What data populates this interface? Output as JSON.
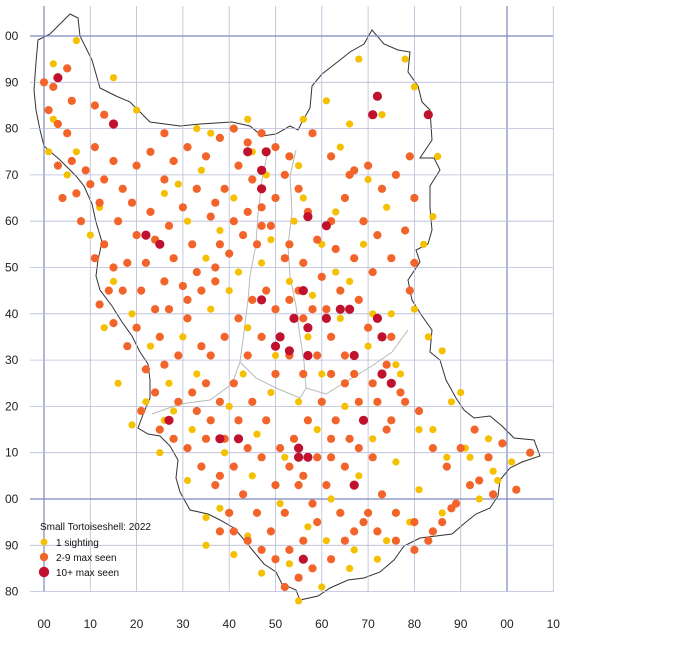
{
  "legend": {
    "title": "Small Tortoiseshell:  2022",
    "items": [
      {
        "label": "1 sighting",
        "color": "#F5C000",
        "symbol": "small-dot"
      },
      {
        "label": "2-9 max seen",
        "color": "#F2642A",
        "symbol": "dot"
      },
      {
        "label": "10+ max seen",
        "color": "#C0122E",
        "symbol": "large-dot"
      }
    ]
  },
  "colors": {
    "grid": "#B8BCD8",
    "grid_major": "#7E86BE",
    "outline": "#333333",
    "inner_boundary": "#B9B9B9"
  },
  "axes": {
    "x_labels": [
      "00",
      "10",
      "20",
      "30",
      "40",
      "50",
      "60",
      "70",
      "80",
      "90",
      "00",
      "10"
    ],
    "y_labels": [
      "00",
      "90",
      "80",
      "70",
      "60",
      "50",
      "40",
      "30",
      "20",
      "10",
      "00",
      "90",
      "80"
    ]
  },
  "records": {
    "one_sighting": [
      [
        2,
        94
      ],
      [
        7,
        99
      ],
      [
        15,
        91
      ],
      [
        20,
        84
      ],
      [
        33,
        80
      ],
      [
        36,
        79
      ],
      [
        44,
        82
      ],
      [
        45,
        75
      ],
      [
        55,
        72
      ],
      [
        56,
        82
      ],
      [
        61,
        86
      ],
      [
        64,
        76
      ],
      [
        66,
        81
      ],
      [
        68,
        95
      ],
      [
        73,
        83
      ],
      [
        78,
        95
      ],
      [
        80,
        89
      ],
      [
        85,
        74
      ],
      [
        84,
        61
      ],
      [
        82,
        55
      ],
      [
        80,
        41
      ],
      [
        75,
        40
      ],
      [
        83,
        35
      ],
      [
        77,
        27
      ],
      [
        88,
        21
      ],
      [
        84,
        15
      ],
      [
        91,
        11
      ],
      [
        96,
        13
      ],
      [
        101,
        8
      ],
      [
        98,
        4
      ],
      [
        94,
        0
      ],
      [
        86,
        -3
      ],
      [
        79,
        -5
      ],
      [
        72,
        -13
      ],
      [
        66,
        -15
      ],
      [
        60,
        -19
      ],
      [
        55,
        -22
      ],
      [
        47,
        -16
      ],
      [
        41,
        -12
      ],
      [
        35,
        -4
      ],
      [
        31,
        4
      ],
      [
        25,
        10
      ],
      [
        19,
        16
      ],
      [
        22,
        21
      ],
      [
        27,
        25
      ],
      [
        23,
        33
      ],
      [
        19,
        40
      ],
      [
        15,
        47
      ],
      [
        10,
        57
      ],
      [
        12,
        63
      ],
      [
        7,
        75
      ],
      [
        2,
        82
      ],
      [
        1,
        75
      ],
      [
        26,
        66
      ],
      [
        38,
        58
      ],
      [
        47,
        51
      ],
      [
        53,
        47
      ],
      [
        58,
        44
      ],
      [
        63,
        49
      ],
      [
        69,
        55
      ],
      [
        74,
        63
      ],
      [
        70,
        69
      ],
      [
        63,
        62
      ],
      [
        56,
        65
      ],
      [
        49,
        56
      ],
      [
        42,
        49
      ],
      [
        36,
        41
      ],
      [
        30,
        35
      ],
      [
        33,
        27
      ],
      [
        40,
        20
      ],
      [
        46,
        14
      ],
      [
        52,
        9
      ],
      [
        59,
        15
      ],
      [
        65,
        20
      ],
      [
        71,
        13
      ],
      [
        76,
        8
      ],
      [
        81,
        15
      ],
      [
        68,
        5
      ],
      [
        62,
        0
      ],
      [
        57,
        -6
      ],
      [
        51,
        -1
      ],
      [
        45,
        5
      ],
      [
        39,
        10
      ],
      [
        32,
        15
      ],
      [
        28,
        19
      ],
      [
        43,
        27
      ],
      [
        50,
        31
      ],
      [
        57,
        35
      ],
      [
        64,
        39
      ],
      [
        70,
        33
      ],
      [
        60,
        27
      ],
      [
        55,
        21
      ],
      [
        49,
        23
      ],
      [
        44,
        37
      ],
      [
        40,
        45
      ],
      [
        35,
        52
      ],
      [
        31,
        60
      ],
      [
        29,
        68
      ],
      [
        34,
        71
      ],
      [
        41,
        65
      ],
      [
        48,
        70
      ],
      [
        54,
        60
      ],
      [
        60,
        55
      ],
      [
        66,
        47
      ],
      [
        71,
        40
      ],
      [
        76,
        29
      ],
      [
        86,
        32
      ],
      [
        90,
        23
      ],
      [
        92,
        9
      ],
      [
        97,
        6
      ],
      [
        87,
        9
      ],
      [
        81,
        2
      ],
      [
        74,
        -9
      ],
      [
        67,
        -11
      ],
      [
        61,
        -9
      ],
      [
        53,
        -14
      ],
      [
        44,
        -8
      ],
      [
        38,
        -2
      ],
      [
        35,
        -10
      ],
      [
        26,
        17
      ],
      [
        16,
        25
      ],
      [
        13,
        37
      ],
      [
        5,
        70
      ]
    ],
    "two_to_nine": [
      [
        0,
        90
      ],
      [
        2,
        89
      ],
      [
        5,
        93
      ],
      [
        6,
        86
      ],
      [
        1,
        84
      ],
      [
        3,
        81
      ],
      [
        5,
        79
      ],
      [
        11,
        85
      ],
      [
        13,
        83
      ],
      [
        6,
        73
      ],
      [
        9,
        71
      ],
      [
        11,
        76
      ],
      [
        13,
        69
      ],
      [
        15,
        73
      ],
      [
        17,
        67
      ],
      [
        19,
        64
      ],
      [
        12,
        64
      ],
      [
        16,
        60
      ],
      [
        13,
        55
      ],
      [
        15,
        50
      ],
      [
        17,
        45
      ],
      [
        12,
        42
      ],
      [
        15,
        38
      ],
      [
        20,
        37
      ],
      [
        24,
        41
      ],
      [
        26,
        47
      ],
      [
        22,
        51
      ],
      [
        24,
        56
      ],
      [
        27,
        59
      ],
      [
        30,
        63
      ],
      [
        32,
        55
      ],
      [
        28,
        52
      ],
      [
        30,
        46
      ],
      [
        34,
        45
      ],
      [
        37,
        50
      ],
      [
        38,
        55
      ],
      [
        41,
        60
      ],
      [
        36,
        61
      ],
      [
        39,
        67
      ],
      [
        42,
        72
      ],
      [
        45,
        69
      ],
      [
        47,
        63
      ],
      [
        50,
        65
      ],
      [
        52,
        70
      ],
      [
        55,
        67
      ],
      [
        57,
        62
      ],
      [
        59,
        56
      ],
      [
        62,
        60
      ],
      [
        65,
        65
      ],
      [
        67,
        71
      ],
      [
        70,
        72
      ],
      [
        73,
        67
      ],
      [
        76,
        70
      ],
      [
        79,
        74
      ],
      [
        80,
        65
      ],
      [
        78,
        58
      ],
      [
        75,
        52
      ],
      [
        80,
        51
      ],
      [
        79,
        45
      ],
      [
        75,
        35
      ],
      [
        70,
        37
      ],
      [
        68,
        43
      ],
      [
        64,
        45
      ],
      [
        61,
        41
      ],
      [
        56,
        39
      ],
      [
        53,
        43
      ],
      [
        50,
        41
      ],
      [
        48,
        45
      ],
      [
        45,
        43
      ],
      [
        42,
        39
      ],
      [
        39,
        35
      ],
      [
        36,
        31
      ],
      [
        34,
        33
      ],
      [
        31,
        39
      ],
      [
        29,
        31
      ],
      [
        26,
        29
      ],
      [
        24,
        23
      ],
      [
        21,
        19
      ],
      [
        25,
        15
      ],
      [
        29,
        21
      ],
      [
        33,
        19
      ],
      [
        36,
        17
      ],
      [
        39,
        13
      ],
      [
        42,
        17
      ],
      [
        45,
        21
      ],
      [
        48,
        17
      ],
      [
        51,
        11
      ],
      [
        54,
        13
      ],
      [
        57,
        17
      ],
      [
        60,
        21
      ],
      [
        63,
        17
      ],
      [
        66,
        13
      ],
      [
        69,
        17
      ],
      [
        72,
        21
      ],
      [
        75,
        17
      ],
      [
        78,
        21
      ],
      [
        81,
        19
      ],
      [
        84,
        11
      ],
      [
        87,
        7
      ],
      [
        90,
        11
      ],
      [
        93,
        15
      ],
      [
        96,
        9
      ],
      [
        99,
        12
      ],
      [
        92,
        3
      ],
      [
        88,
        -2
      ],
      [
        84,
        -7
      ],
      [
        80,
        -5
      ],
      [
        76,
        -3
      ],
      [
        73,
        1
      ],
      [
        70,
        -3
      ],
      [
        67,
        -7
      ],
      [
        64,
        -3
      ],
      [
        61,
        3
      ],
      [
        58,
        -1
      ],
      [
        55,
        3
      ],
      [
        52,
        -3
      ],
      [
        49,
        -7
      ],
      [
        46,
        -3
      ],
      [
        43,
        1
      ],
      [
        40,
        -3
      ],
      [
        37,
        3
      ],
      [
        34,
        7
      ],
      [
        31,
        11
      ],
      [
        28,
        13
      ],
      [
        22,
        28
      ],
      [
        18,
        33
      ],
      [
        14,
        45
      ],
      [
        11,
        52
      ],
      [
        8,
        60
      ],
      [
        4,
        65
      ],
      [
        3,
        72
      ],
      [
        7,
        66
      ],
      [
        10,
        68
      ],
      [
        20,
        72
      ],
      [
        23,
        75
      ],
      [
        26,
        79
      ],
      [
        28,
        73
      ],
      [
        31,
        76
      ],
      [
        35,
        74
      ],
      [
        38,
        78
      ],
      [
        41,
        80
      ],
      [
        44,
        77
      ],
      [
        47,
        79
      ],
      [
        50,
        76
      ],
      [
        53,
        74
      ],
      [
        58,
        79
      ],
      [
        62,
        74
      ],
      [
        66,
        70
      ],
      [
        69,
        60
      ],
      [
        72,
        57
      ],
      [
        71,
        49
      ],
      [
        67,
        52
      ],
      [
        63,
        54
      ],
      [
        60,
        48
      ],
      [
        56,
        51
      ],
      [
        53,
        55
      ],
      [
        49,
        59
      ],
      [
        46,
        55
      ],
      [
        43,
        57
      ],
      [
        40,
        53
      ],
      [
        37,
        47
      ],
      [
        33,
        49
      ],
      [
        31,
        43
      ],
      [
        27,
        41
      ],
      [
        25,
        35
      ],
      [
        21,
        45
      ],
      [
        18,
        51
      ],
      [
        20,
        57
      ],
      [
        23,
        62
      ],
      [
        26,
        69
      ],
      [
        33,
        67
      ],
      [
        37,
        64
      ],
      [
        44,
        62
      ],
      [
        47,
        59
      ],
      [
        52,
        52
      ],
      [
        55,
        45
      ],
      [
        58,
        41
      ],
      [
        62,
        35
      ],
      [
        65,
        31
      ],
      [
        67,
        27
      ],
      [
        71,
        25
      ],
      [
        74,
        29
      ],
      [
        77,
        23
      ],
      [
        74,
        15
      ],
      [
        71,
        9
      ],
      [
        68,
        11
      ],
      [
        65,
        7
      ],
      [
        62,
        9
      ],
      [
        59,
        9
      ],
      [
        56,
        5
      ],
      [
        53,
        7
      ],
      [
        50,
        3
      ],
      [
        47,
        9
      ],
      [
        44,
        11
      ],
      [
        41,
        7
      ],
      [
        38,
        5
      ],
      [
        35,
        13
      ],
      [
        32,
        23
      ],
      [
        35,
        25
      ],
      [
        38,
        21
      ],
      [
        41,
        25
      ],
      [
        44,
        31
      ],
      [
        47,
        35
      ],
      [
        50,
        27
      ],
      [
        53,
        31
      ],
      [
        56,
        27
      ],
      [
        59,
        31
      ],
      [
        62,
        27
      ],
      [
        65,
        25
      ],
      [
        68,
        21
      ],
      [
        62,
        13
      ],
      [
        59,
        -5
      ],
      [
        56,
        -9
      ],
      [
        53,
        -11
      ],
      [
        50,
        -13
      ],
      [
        47,
        -11
      ],
      [
        44,
        -9
      ],
      [
        41,
        -7
      ],
      [
        38,
        -7
      ],
      [
        62,
        -13
      ],
      [
        58,
        -15
      ],
      [
        55,
        -17
      ],
      [
        52,
        -19
      ],
      [
        65,
        -9
      ],
      [
        69,
        -5
      ],
      [
        72,
        -7
      ],
      [
        76,
        -9
      ],
      [
        80,
        -11
      ],
      [
        83,
        -9
      ],
      [
        86,
        -5
      ],
      [
        89,
        -1
      ],
      [
        94,
        4
      ],
      [
        97,
        1
      ],
      [
        102,
        2
      ],
      [
        105,
        10
      ]
    ],
    "ten_plus": [
      [
        3,
        91
      ],
      [
        15,
        81
      ],
      [
        72,
        87
      ],
      [
        71,
        83
      ],
      [
        83,
        83
      ],
      [
        44,
        75
      ],
      [
        48,
        75
      ],
      [
        47,
        71
      ],
      [
        47,
        67
      ],
      [
        57,
        61
      ],
      [
        61,
        59
      ],
      [
        22,
        57
      ],
      [
        25,
        55
      ],
      [
        47,
        43
      ],
      [
        56,
        45
      ],
      [
        64,
        41
      ],
      [
        66,
        41
      ],
      [
        54,
        39
      ],
      [
        57,
        37
      ],
      [
        61,
        39
      ],
      [
        72,
        39
      ],
      [
        73,
        35
      ],
      [
        51,
        35
      ],
      [
        50,
        33
      ],
      [
        53,
        32
      ],
      [
        57,
        31
      ],
      [
        67,
        31
      ],
      [
        73,
        27
      ],
      [
        75,
        25
      ],
      [
        27,
        17
      ],
      [
        38,
        13
      ],
      [
        42,
        13
      ],
      [
        55,
        11
      ],
      [
        55,
        9
      ],
      [
        57,
        9
      ],
      [
        69,
        17
      ],
      [
        67,
        3
      ],
      [
        56,
        -13
      ]
    ]
  }
}
